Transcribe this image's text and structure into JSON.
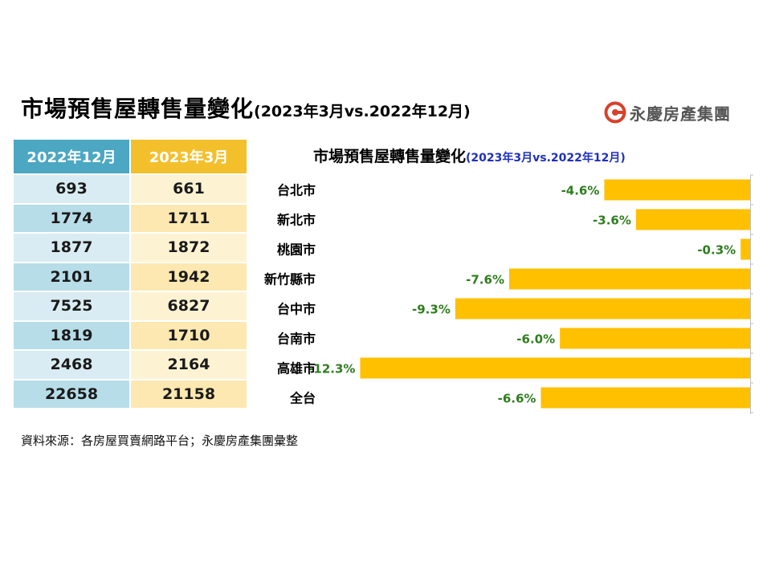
{
  "title": {
    "main": "市場預售屋轉售量變化",
    "sub": "(2023年3月vs.2022年12月)"
  },
  "logo": {
    "text": "永慶房產集團",
    "icon": "g-circle-logo-icon",
    "color": "#d8402c"
  },
  "table": {
    "headers": [
      "2022年12月",
      "2023年3月"
    ],
    "rows": [
      [
        "693",
        "661"
      ],
      [
        "1774",
        "1711"
      ],
      [
        "1877",
        "1872"
      ],
      [
        "2101",
        "1942"
      ],
      [
        "7525",
        "6827"
      ],
      [
        "1819",
        "1710"
      ],
      [
        "2468",
        "2164"
      ],
      [
        "22658",
        "21158"
      ]
    ]
  },
  "chart_data": {
    "type": "bar",
    "orientation": "horizontal",
    "title": "市場預售屋轉售量變化",
    "subtitle": "(2023年3月vs.2022年12月)",
    "categories": [
      "台北市",
      "新北市",
      "桃園市",
      "新竹縣市",
      "台中市",
      "台南市",
      "高雄市",
      "全台"
    ],
    "values": [
      -4.6,
      -3.6,
      -0.3,
      -7.6,
      -9.3,
      -6.0,
      -12.3,
      -6.6
    ],
    "labels": [
      "-4.6%",
      "-3.6%",
      "-0.3%",
      "-7.6%",
      "-9.3%",
      "-6.0%",
      "-12.3%",
      "-6.6%"
    ],
    "xlim": [
      -13.4,
      0
    ],
    "bar_color": "#ffc000",
    "label_color": "#2e7d1e",
    "legend": "none"
  },
  "source": "資料來源：各房屋買賣網路平台；永慶房產集團彙整"
}
